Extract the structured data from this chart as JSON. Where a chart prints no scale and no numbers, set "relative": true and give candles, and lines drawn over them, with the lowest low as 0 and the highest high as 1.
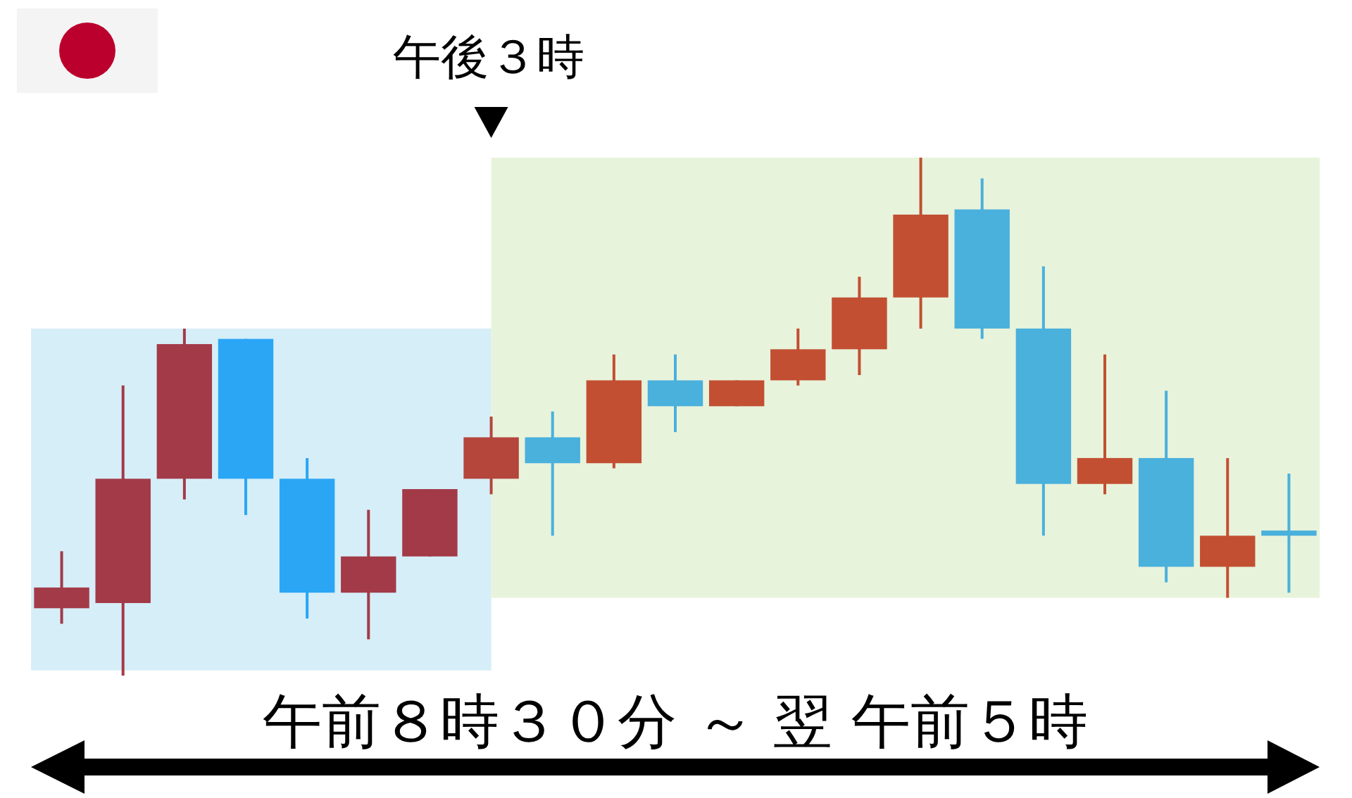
{
  "chart_data": {
    "type": "candlestick",
    "relative": true,
    "categories": [
      null,
      null,
      null,
      null,
      null,
      null,
      null,
      null,
      null,
      null,
      null,
      null,
      null,
      null,
      null,
      null,
      null,
      null,
      null,
      null,
      null
    ],
    "ohlc": [
      [
        0.13,
        0.24,
        0.1,
        0.17
      ],
      [
        0.14,
        0.56,
        0.0,
        0.38
      ],
      [
        0.38,
        0.67,
        0.34,
        0.64
      ],
      [
        0.65,
        0.65,
        0.31,
        0.38
      ],
      [
        0.38,
        0.42,
        0.11,
        0.16
      ],
      [
        0.16,
        0.32,
        0.07,
        0.23
      ],
      [
        0.23,
        0.36,
        0.23,
        0.36
      ],
      [
        0.38,
        0.5,
        0.35,
        0.46
      ],
      [
        0.46,
        0.51,
        0.27,
        0.41
      ],
      [
        0.41,
        0.62,
        0.4,
        0.57
      ],
      [
        0.57,
        0.62,
        0.47,
        0.52
      ],
      [
        0.52,
        0.57,
        0.52,
        0.57
      ],
      [
        0.57,
        0.67,
        0.56,
        0.63
      ],
      [
        0.63,
        0.77,
        0.58,
        0.73
      ],
      [
        0.73,
        1.0,
        0.67,
        0.89
      ],
      [
        0.9,
        0.96,
        0.65,
        0.67
      ],
      [
        0.67,
        0.79,
        0.27,
        0.37
      ],
      [
        0.37,
        0.62,
        0.35,
        0.42
      ],
      [
        0.42,
        0.55,
        0.18,
        0.21
      ],
      [
        0.21,
        0.42,
        0.15,
        0.27
      ],
      [
        0.28,
        0.39,
        0.16,
        0.27
      ]
    ],
    "colors": [
      "#a33a48",
      "#a33a48",
      "#a33a48",
      "#2aa6f5",
      "#2aa6f5",
      "#a33a48",
      "#a33a48",
      "#b4463c",
      "#4ab0dc",
      "#c24f31",
      "#4ab0dc",
      "#c24f31",
      "#c24f31",
      "#c24f31",
      "#c24f31",
      "#4ab0dc",
      "#4ab0dc",
      "#c24f31",
      "#4ab0dc",
      "#c24f31",
      "#4ab0dc"
    ],
    "annotations": [
      "午後３時",
      "午前８時３０分 ～ 翌 午前５時"
    ]
  }
}
